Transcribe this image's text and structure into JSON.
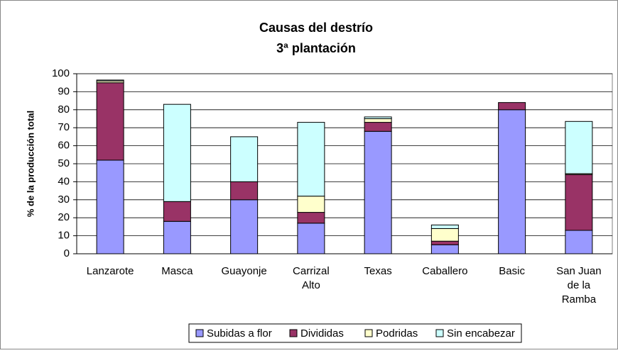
{
  "chart_data": {
    "type": "stacked_bar",
    "title": "Causas del destrío",
    "subtitle": "3ª plantación",
    "y_label": "% de la producción total",
    "categories": [
      "Lanzarote",
      "Masca",
      "Guayonje",
      "Carrizal Alto",
      "Texas",
      "Caballero",
      "Basic",
      "San Juan de la Ramba"
    ],
    "series": [
      {
        "name": "Subidas a flor",
        "color": "#9999ff",
        "values": [
          52,
          18,
          30,
          17,
          68,
          5,
          80,
          13
        ]
      },
      {
        "name": "Divididas",
        "color": "#993366",
        "values": [
          43,
          11,
          10,
          6,
          5,
          2,
          4,
          31
        ]
      },
      {
        "name": "Podridas",
        "color": "#ffffcc",
        "values": [
          1,
          0,
          0,
          9,
          2,
          7,
          0,
          0.5
        ]
      },
      {
        "name": "Sin encabezar",
        "color": "#ccffff",
        "values": [
          0.5,
          54,
          25,
          41,
          1,
          2,
          0,
          29
        ]
      }
    ],
    "ylim": [
      0,
      100
    ],
    "yticks": [
      0,
      10,
      20,
      30,
      40,
      50,
      60,
      70,
      80,
      90,
      100
    ],
    "grid": true,
    "legend": "bottom"
  }
}
